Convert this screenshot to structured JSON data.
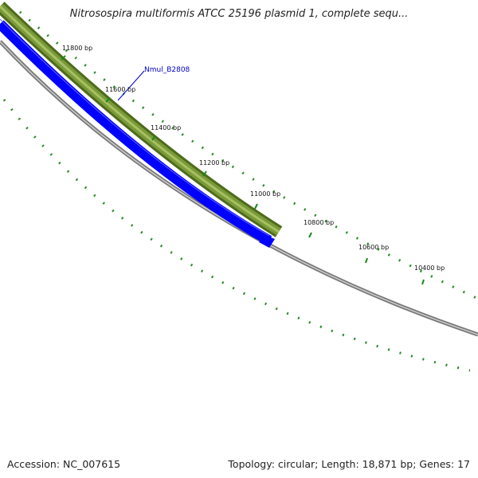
{
  "title": "Nitrosospira multiformis ATCC 25196 plasmid 1, complete sequ...",
  "footer": {
    "accession": "Accession: NC_007615",
    "topology": "Topology: circular; Length: 18,871 bp; Genes: 17"
  },
  "gene_label": "Nmul_B2808",
  "ticks": [
    "11800 bp",
    "11600 bp",
    "11400 bp",
    "11200 bp",
    "11000 bp",
    "10800 bp",
    "10600 bp",
    "10400 bp"
  ],
  "colors": {
    "gene_forward": "#6b8e23",
    "gene_reverse": "#0000ff",
    "backbone": "#808080",
    "gc_marks": "#228b22",
    "label": "#0000cc"
  }
}
